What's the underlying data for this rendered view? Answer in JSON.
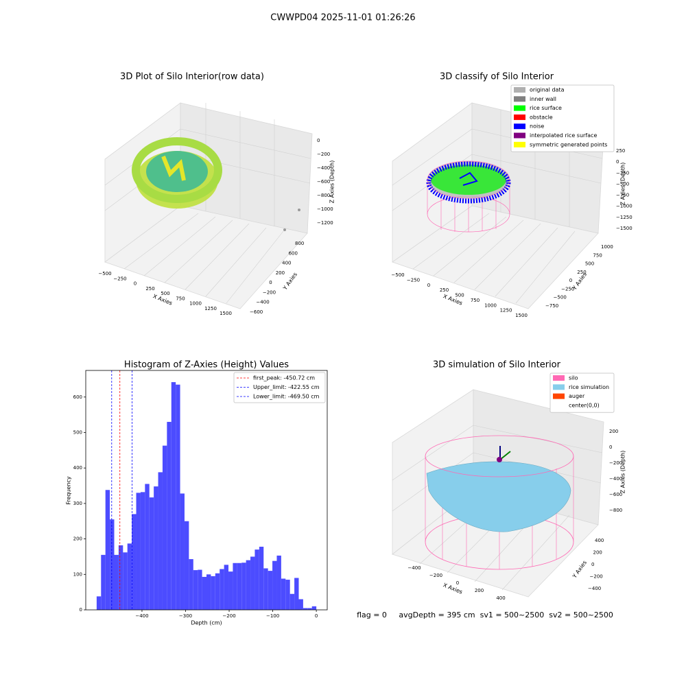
{
  "title": "CWWPD04 2025-11-01 01:26:26",
  "footer": "flag = 0     avgDepth = 395 cm  sv1 = 500~2500  sv2 = 500~2500",
  "chart_data": [
    {
      "type": "scatter3d",
      "title": "3D Plot of Silo Interior(row data)",
      "xlabel": "X Axies",
      "ylabel": "Y Axies",
      "zlabel": "Z Axies (Depth)",
      "xticks": [
        {
          "value": -500,
          "label": "−500"
        },
        {
          "value": -250,
          "label": "−250"
        },
        0,
        250,
        500,
        750,
        1000,
        1250,
        1500
      ],
      "yticks": [
        {
          "value": -600,
          "label": "−600"
        },
        {
          "value": -400,
          "label": "−400"
        },
        {
          "value": -200,
          "label": "−200"
        },
        0,
        200,
        400,
        600,
        800
      ],
      "zticks": [
        0,
        {
          "value": -200,
          "label": "−200"
        },
        {
          "value": -400,
          "label": "−400"
        },
        {
          "value": -600,
          "label": "−600"
        },
        {
          "value": -800,
          "label": "−800"
        },
        {
          "value": -1000,
          "label": "−1000"
        },
        {
          "value": -1200,
          "label": "−1200"
        }
      ]
    },
    {
      "type": "scatter3d",
      "title": "3D classify of Silo Interior",
      "xlabel": "X Axies",
      "ylabel": "Y Axies",
      "zlabel": "Z Axies (Depth)",
      "xticks": [
        {
          "value": -500,
          "label": "−500"
        },
        {
          "value": -250,
          "label": "−250"
        },
        0,
        250,
        500,
        750,
        1000,
        1250,
        1500
      ],
      "yticks": [
        {
          "value": -750,
          "label": "−750"
        },
        {
          "value": -500,
          "label": "−500"
        },
        {
          "value": -250,
          "label": "−250"
        },
        0,
        250,
        500,
        750,
        1000
      ],
      "zticks": [
        250,
        0,
        {
          "value": -250,
          "label": "−250"
        },
        {
          "value": -500,
          "label": "−500"
        },
        {
          "value": -750,
          "label": "−750"
        },
        {
          "value": -1000,
          "label": "−1000"
        },
        {
          "value": -1250,
          "label": "−1250"
        },
        {
          "value": -1500,
          "label": "−1500"
        }
      ],
      "legend": [
        {
          "name": "original data",
          "color": "#b0b0b0"
        },
        {
          "name": "inner wall",
          "color": "#808080"
        },
        {
          "name": "rice surface",
          "color": "#00ff00"
        },
        {
          "name": "obstacle",
          "color": "#ff0000"
        },
        {
          "name": "noise",
          "color": "#0000ff"
        },
        {
          "name": "interpolated rice surface",
          "color": "#800080"
        },
        {
          "name": "symmetric generated points",
          "color": "#ffff00"
        }
      ]
    },
    {
      "type": "histogram",
      "title": "Histogram of Z-Axies (Height) Values",
      "xlabel": "Depth (cm)",
      "ylabel": "Frequency",
      "color": "#4c4cff",
      "bins": [
        -504,
        -493.92,
        -483.84,
        -473.76,
        -463.68,
        -453.6,
        -443.52,
        -433.44,
        -423.36,
        -413.28,
        -403.2,
        -393.12,
        -383.04,
        -372.96,
        -362.88,
        -352.8,
        -342.72,
        -332.64,
        -322.56,
        -312.48,
        -302.4,
        -292.32,
        -282.24,
        -272.16,
        -262.08,
        -252,
        -241.92,
        -231.84,
        -221.76,
        -211.68,
        -201.6,
        -191.52,
        -181.44,
        -171.36,
        -161.28,
        -151.2,
        -141.12,
        -131.04,
        -120.96,
        -110.88,
        -100.8,
        -90.72,
        -80.64,
        -70.56,
        -60.48,
        -50.4,
        -40.32,
        -30.24,
        -20.16,
        -10.08,
        0
      ],
      "counts": [
        38,
        155,
        338,
        255,
        155,
        182,
        162,
        187,
        270,
        330,
        332,
        355,
        317,
        348,
        388,
        463,
        530,
        642,
        635,
        328,
        250,
        143,
        112,
        113,
        93,
        100,
        95,
        103,
        115,
        127,
        108,
        132,
        132,
        133,
        140,
        150,
        170,
        178,
        117,
        110,
        138,
        153,
        88,
        85,
        45,
        90,
        30,
        5,
        5,
        10
      ],
      "xlim": [
        -529,
        25
      ],
      "ylim": [
        0,
        675
      ],
      "xticks": [
        {
          "value": -400,
          "label": "−400"
        },
        {
          "value": -300,
          "label": "−300"
        },
        {
          "value": -200,
          "label": "−200"
        },
        {
          "value": -100,
          "label": "−100"
        },
        0
      ],
      "yticks": [
        0,
        100,
        200,
        300,
        400,
        500,
        600
      ],
      "lines": [
        {
          "x": -450.72,
          "label": "first_peak: -450.72 cm",
          "color": "#ff0000"
        },
        {
          "x": -422.55,
          "label": "Upper_limit: -422.55 cm",
          "color": "#0000ff"
        },
        {
          "x": -469.5,
          "label": "Lower_limit: -469.50 cm",
          "color": "#0000ff"
        }
      ]
    },
    {
      "type": "surface3d",
      "title": "3D simulation of Silo Interior",
      "xlabel": "X Axies",
      "ylabel": "Y Axies",
      "zlabel": "Z Axies (Depth)",
      "xticks": [
        {
          "value": -400,
          "label": "−400"
        },
        {
          "value": -200,
          "label": "−200"
        },
        0,
        200,
        400
      ],
      "yticks": [
        {
          "value": -400,
          "label": "−400"
        },
        {
          "value": -200,
          "label": "−200"
        },
        0,
        200,
        400
      ],
      "zticks": [
        200,
        0,
        {
          "value": -200,
          "label": "−200"
        },
        {
          "value": -400,
          "label": "−400"
        },
        {
          "value": -600,
          "label": "−600"
        },
        {
          "value": -800,
          "label": "−800"
        }
      ],
      "legend": [
        {
          "name": "silo",
          "color": "#ff69b4"
        },
        {
          "name": "rice simulation",
          "color": "#87ceeb"
        },
        {
          "name": "auger",
          "color": "#ff4500"
        },
        {
          "name": "center(0,0)",
          "color": "#ffffff"
        }
      ]
    }
  ]
}
